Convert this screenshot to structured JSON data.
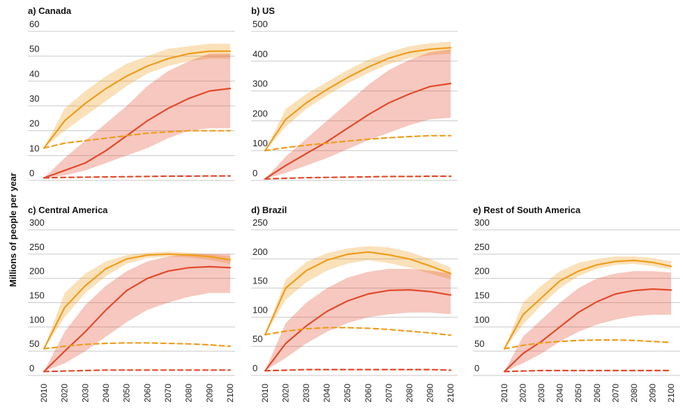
{
  "ylabel": "Millions of people per year",
  "chart_data": [
    {
      "type": "line",
      "title": "a) Canada",
      "ylim": [
        0,
        60
      ],
      "yticks": [
        0,
        10,
        20,
        30,
        40,
        50,
        60
      ],
      "x": [
        2010,
        2020,
        2030,
        2040,
        2050,
        2060,
        2070,
        2080,
        2090,
        2100
      ],
      "xticks": [],
      "series": [
        {
          "style": "solid",
          "color": "#ef9c1b",
          "values": [
            13,
            24,
            31,
            37,
            42,
            46,
            49,
            51,
            52,
            52
          ],
          "band_low": [
            13,
            20,
            26,
            32,
            38,
            43,
            46,
            48,
            49,
            49
          ],
          "band_high": [
            13,
            29,
            36,
            42,
            47,
            50,
            53,
            54,
            55,
            55
          ]
        },
        {
          "style": "solid",
          "color": "#e2492a",
          "values": [
            1,
            4,
            7,
            12,
            18,
            24,
            29,
            33,
            36,
            37
          ],
          "band_low": [
            1,
            2,
            4,
            7,
            10,
            13,
            17,
            20,
            21,
            21
          ],
          "band_high": [
            1,
            9,
            16,
            23,
            30,
            38,
            44,
            48,
            51,
            51
          ]
        },
        {
          "style": "dashed",
          "color": "#ef9c1b",
          "values": [
            13,
            15,
            16,
            17,
            18,
            19,
            19.5,
            20,
            20,
            20
          ]
        },
        {
          "style": "dashed",
          "color": "#e2492a",
          "values": [
            1,
            1.2,
            1.3,
            1.4,
            1.5,
            1.6,
            1.7,
            1.7,
            1.8,
            1.8
          ]
        }
      ]
    },
    {
      "type": "line",
      "title": "b) US",
      "ylim": [
        0,
        500
      ],
      "yticks": [
        0,
        100,
        200,
        300,
        400,
        500
      ],
      "x": [
        2010,
        2020,
        2030,
        2040,
        2050,
        2060,
        2070,
        2080,
        2090,
        2100
      ],
      "xticks": [],
      "series": [
        {
          "style": "solid",
          "color": "#ef9c1b",
          "values": [
            100,
            205,
            260,
            305,
            345,
            380,
            410,
            430,
            440,
            445
          ],
          "band_low": [
            100,
            180,
            240,
            285,
            325,
            360,
            390,
            410,
            420,
            425
          ],
          "band_high": [
            100,
            240,
            290,
            330,
            370,
            405,
            430,
            450,
            460,
            465
          ]
        },
        {
          "style": "solid",
          "color": "#e2492a",
          "values": [
            5,
            50,
            90,
            130,
            175,
            220,
            260,
            290,
            315,
            325
          ],
          "band_low": [
            5,
            25,
            50,
            75,
            105,
            135,
            160,
            185,
            205,
            210
          ],
          "band_high": [
            5,
            80,
            140,
            200,
            260,
            320,
            370,
            405,
            430,
            440
          ]
        },
        {
          "style": "dashed",
          "color": "#ef9c1b",
          "values": [
            100,
            110,
            118,
            125,
            132,
            138,
            143,
            147,
            150,
            150
          ]
        },
        {
          "style": "dashed",
          "color": "#e2492a",
          "values": [
            5,
            7,
            9,
            10,
            11,
            12,
            13,
            13,
            14,
            14
          ]
        }
      ]
    },
    {
      "type": "line",
      "title": "c) Central America",
      "ylim": [
        0,
        300
      ],
      "yticks": [
        0,
        50,
        100,
        150,
        200,
        250,
        300
      ],
      "x": [
        2010,
        2020,
        2030,
        2040,
        2050,
        2060,
        2070,
        2080,
        2090,
        2100
      ],
      "xticks": [
        "2010",
        "2020",
        "2030",
        "2040",
        "2050",
        "2060",
        "2070",
        "2080",
        "2090",
        "2100"
      ],
      "series": [
        {
          "style": "solid",
          "color": "#ef9c1b",
          "values": [
            55,
            140,
            185,
            220,
            240,
            248,
            250,
            248,
            245,
            238
          ],
          "band_low": [
            55,
            120,
            170,
            205,
            230,
            242,
            245,
            243,
            238,
            230
          ],
          "band_high": [
            55,
            170,
            210,
            235,
            248,
            253,
            255,
            253,
            250,
            245
          ]
        },
        {
          "style": "solid",
          "color": "#e2492a",
          "values": [
            8,
            50,
            90,
            135,
            175,
            200,
            215,
            222,
            224,
            222
          ],
          "band_low": [
            8,
            25,
            50,
            80,
            110,
            135,
            150,
            162,
            170,
            170
          ],
          "band_high": [
            8,
            90,
            145,
            185,
            215,
            235,
            245,
            250,
            250,
            250
          ]
        },
        {
          "style": "dashed",
          "color": "#ef9c1b",
          "values": [
            55,
            60,
            64,
            66,
            67,
            67,
            66,
            65,
            63,
            60
          ]
        },
        {
          "style": "dashed",
          "color": "#e2492a",
          "values": [
            8,
            9,
            10,
            11,
            11,
            11,
            11,
            11,
            11,
            11
          ]
        }
      ]
    },
    {
      "type": "line",
      "title": "d) Brazil",
      "ylim": [
        0,
        250
      ],
      "yticks": [
        0,
        50,
        100,
        150,
        200,
        250
      ],
      "x": [
        2010,
        2020,
        2030,
        2040,
        2050,
        2060,
        2070,
        2080,
        2090,
        2100
      ],
      "xticks": [
        "2010",
        "2020",
        "2030",
        "2040",
        "2050",
        "2060",
        "2070",
        "2080",
        "2090",
        "2100"
      ],
      "series": [
        {
          "style": "solid",
          "color": "#ef9c1b",
          "values": [
            70,
            150,
            180,
            198,
            208,
            212,
            207,
            200,
            188,
            175
          ],
          "band_low": [
            70,
            130,
            160,
            180,
            192,
            198,
            193,
            185,
            175,
            165
          ],
          "band_high": [
            70,
            165,
            195,
            210,
            218,
            222,
            220,
            212,
            200,
            185
          ]
        },
        {
          "style": "solid",
          "color": "#e2492a",
          "values": [
            8,
            55,
            85,
            110,
            128,
            140,
            146,
            147,
            144,
            138
          ],
          "band_low": [
            8,
            30,
            55,
            75,
            90,
            100,
            105,
            108,
            108,
            105
          ],
          "band_high": [
            8,
            90,
            125,
            150,
            168,
            178,
            183,
            183,
            180,
            175
          ]
        },
        {
          "style": "dashed",
          "color": "#ef9c1b",
          "values": [
            70,
            76,
            80,
            82,
            82,
            81,
            79,
            76,
            73,
            69
          ]
        },
        {
          "style": "dashed",
          "color": "#e2492a",
          "values": [
            8,
            9,
            10,
            10,
            10,
            10,
            10,
            10,
            10,
            9
          ]
        }
      ]
    },
    {
      "type": "line",
      "title": "e) Rest of South America",
      "ylim": [
        0,
        300
      ],
      "yticks": [
        0,
        50,
        100,
        150,
        200,
        250,
        300
      ],
      "x": [
        2010,
        2020,
        2030,
        2040,
        2050,
        2060,
        2070,
        2080,
        2090,
        2100
      ],
      "xticks": [
        "2010",
        "2020",
        "2030",
        "2040",
        "2050",
        "2060",
        "2070",
        "2080",
        "2090",
        "2100"
      ],
      "series": [
        {
          "style": "solid",
          "color": "#ef9c1b",
          "values": [
            55,
            125,
            160,
            195,
            215,
            228,
            235,
            237,
            233,
            225
          ],
          "band_low": [
            55,
            105,
            145,
            180,
            205,
            220,
            228,
            230,
            225,
            218
          ],
          "band_high": [
            55,
            150,
            185,
            215,
            232,
            240,
            245,
            245,
            242,
            235
          ]
        },
        {
          "style": "solid",
          "color": "#e2492a",
          "values": [
            8,
            45,
            70,
            100,
            130,
            152,
            168,
            175,
            178,
            176
          ],
          "band_low": [
            8,
            25,
            45,
            70,
            90,
            105,
            115,
            122,
            125,
            125
          ],
          "band_high": [
            8,
            80,
            115,
            150,
            180,
            200,
            210,
            215,
            215,
            212
          ]
        },
        {
          "style": "dashed",
          "color": "#ef9c1b",
          "values": [
            55,
            62,
            67,
            70,
            72,
            73,
            73,
            72,
            70,
            68
          ]
        },
        {
          "style": "dashed",
          "color": "#e2492a",
          "values": [
            8,
            9,
            10,
            10,
            10,
            10,
            10,
            10,
            10,
            10
          ]
        }
      ]
    }
  ]
}
